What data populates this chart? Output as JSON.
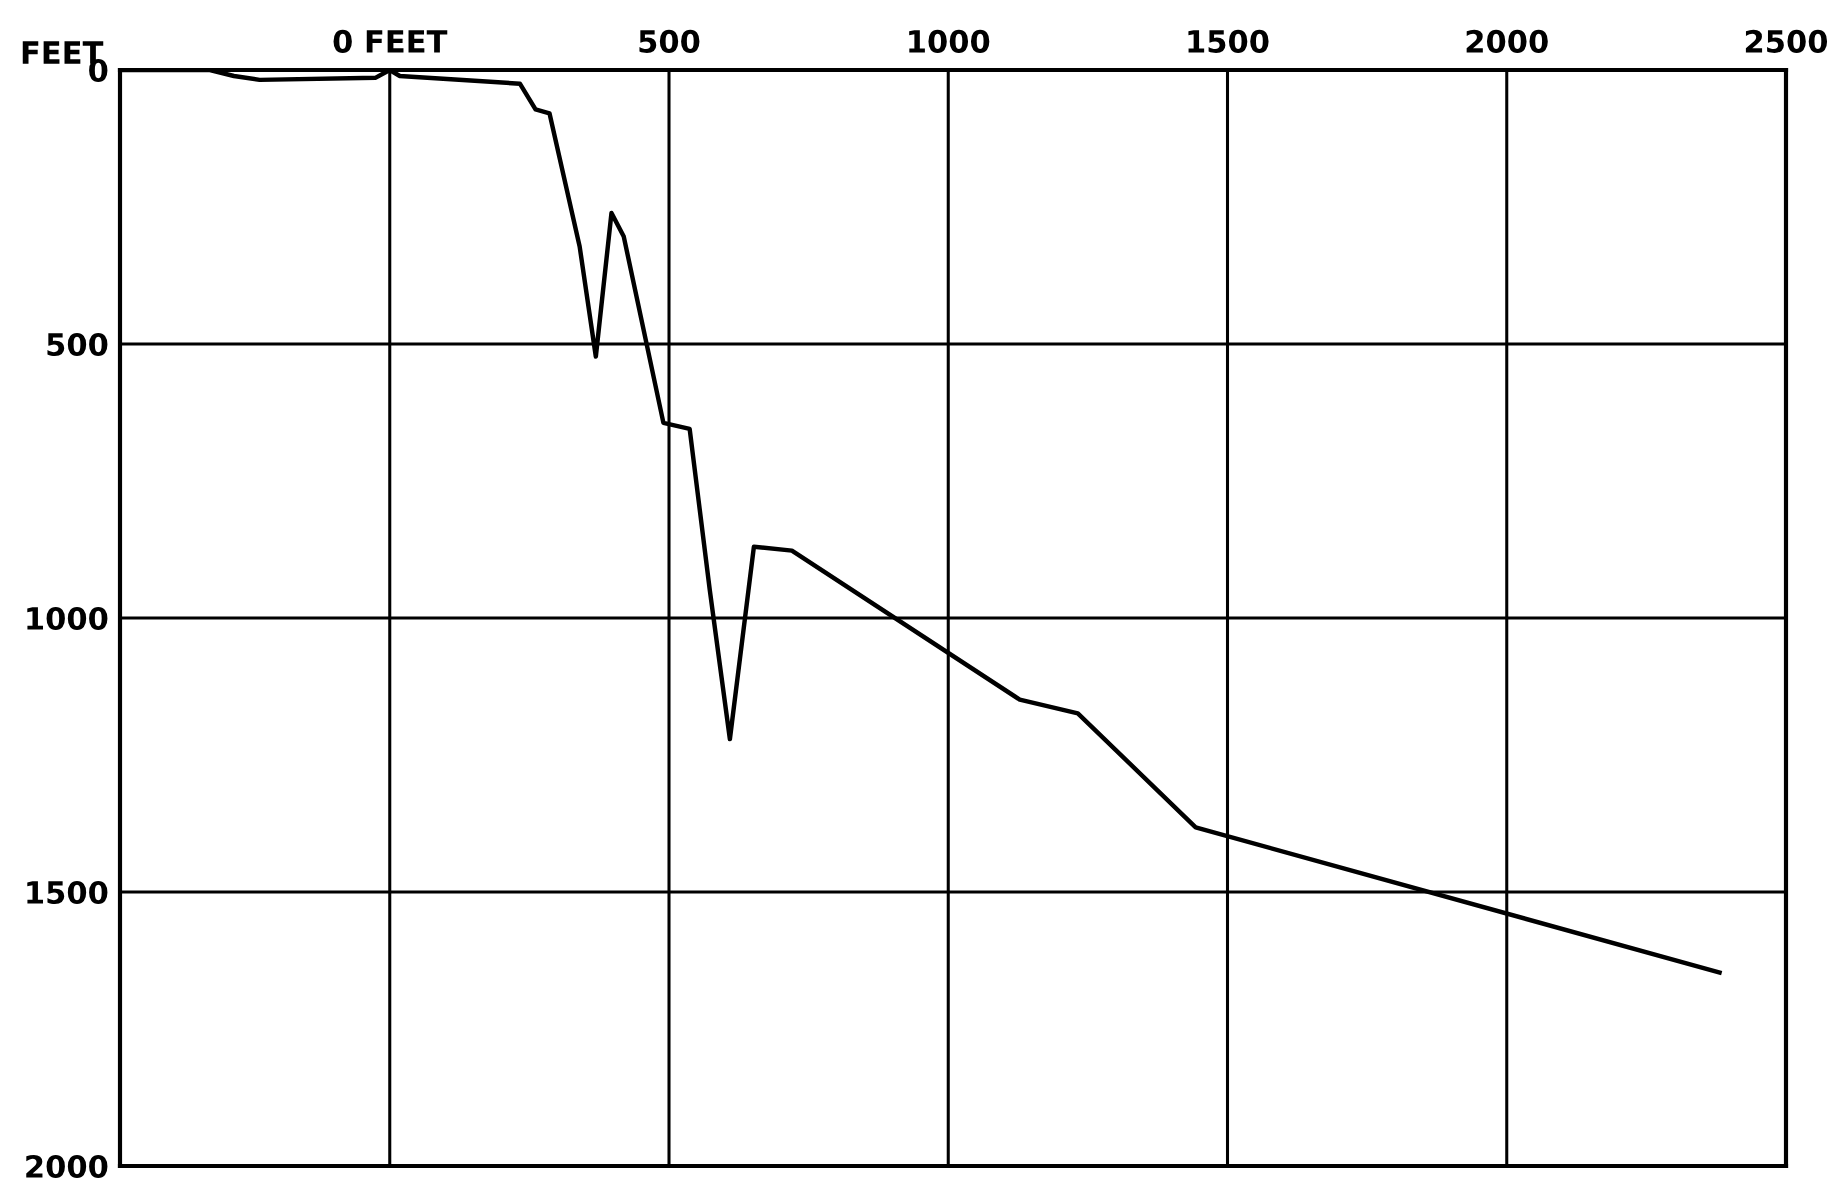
{
  "chart_data": {
    "type": "line",
    "ylabel": "FEET",
    "x": [
      -483,
      -322,
      -279,
      -233,
      -25,
      0,
      18,
      233,
      261,
      286,
      340,
      369,
      397,
      419,
      490,
      537,
      573,
      609,
      652,
      720,
      1128,
      1232,
      1443,
      2381
    ],
    "series": [
      {
        "color": "#000000",
        "values": [
          0,
          0,
          11,
          18,
          14,
          0,
          11,
          25,
          72,
          79,
          322,
          523,
          261,
          304,
          644,
          655,
          949,
          1221,
          870,
          877,
          1149,
          1174,
          1382,
          1647
        ]
      }
    ],
    "xlim": [
      -483,
      2500
    ],
    "xticks": [
      {
        "value": 0,
        "label": "0 FEET"
      },
      500,
      1000,
      1500,
      2000,
      2500
    ],
    "ylim": [
      2000,
      0
    ],
    "yticks": [
      0,
      500,
      1000,
      1500,
      2000
    ],
    "grid": true,
    "marker": "none",
    "line_style": "solid"
  }
}
